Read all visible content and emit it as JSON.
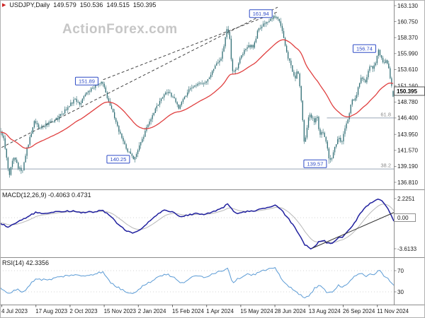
{
  "quote_bar": {
    "symbol": "USDJPY,Daily",
    "open": "149.579",
    "high": "150.536",
    "low": "149.515",
    "close": "150.395"
  },
  "watermark": "ActionForex.com",
  "panels": {
    "macd": {
      "label": "MACD(12,26,9) -0.4063 0.4731"
    },
    "rsi": {
      "label": "RSI(14) 42.3356"
    }
  },
  "colors": {
    "candle": "#2f6d74",
    "ma": "#e04040",
    "macd": "#1f1f9e",
    "macd_signal": "#b8b8b8",
    "macd_trendline": "#333333",
    "rsi": "#5b9bd5",
    "annotation": "#2e4bc6",
    "trendline": "#444444",
    "fib": "#9aa7b8",
    "fib_text": "#8a8a8a",
    "axis_text": "#1a1a1a",
    "separator": "#8c8c8c"
  },
  "x_axis": {
    "labels": [
      "4 Jul 2023",
      "17 Aug 2023",
      "2 Oct 2023",
      "15 Nov 2023",
      "2 Jan 2024",
      "15 Feb 2024",
      "1 Apr 2024",
      "15 May 2024",
      "28 Jun 2024",
      "13 Aug 2024",
      "26 Sep 2024",
      "11 Nov 2024"
    ]
  },
  "chart_data": [
    {
      "type": "candlestick",
      "name": "USDJPY Daily price",
      "y_axis_labels": [
        "163.130",
        "160.750",
        "158.370",
        "155.990",
        "153.610",
        "151.160",
        "148.780",
        "146.400",
        "143.950",
        "141.570",
        "139.190",
        "136.810"
      ],
      "current_price_label": "150.395",
      "ylim": [
        136.0,
        164.0
      ],
      "series_anchors": {
        "price": [
          [
            0.0,
            144.3
          ],
          [
            0.008,
            143.2
          ],
          [
            0.022,
            137.6
          ],
          [
            0.032,
            140.9
          ],
          [
            0.045,
            139.0
          ],
          [
            0.055,
            138.4
          ],
          [
            0.065,
            141.4
          ],
          [
            0.086,
            146.0
          ],
          [
            0.1,
            144.9
          ],
          [
            0.118,
            145.5
          ],
          [
            0.145,
            146.3
          ],
          [
            0.17,
            147.9
          ],
          [
            0.19,
            149.3
          ],
          [
            0.2,
            148.4
          ],
          [
            0.215,
            149.8
          ],
          [
            0.232,
            150.8
          ],
          [
            0.25,
            151.5
          ],
          [
            0.258,
            151.89
          ],
          [
            0.268,
            150.1
          ],
          [
            0.285,
            147.3
          ],
          [
            0.3,
            144.7
          ],
          [
            0.315,
            142.4
          ],
          [
            0.327,
            141.2
          ],
          [
            0.338,
            140.3
          ],
          [
            0.355,
            142.3
          ],
          [
            0.37,
            144.7
          ],
          [
            0.385,
            146.7
          ],
          [
            0.4,
            148.2
          ],
          [
            0.418,
            150.2
          ],
          [
            0.432,
            150.0
          ],
          [
            0.445,
            148.9
          ],
          [
            0.455,
            147.8
          ],
          [
            0.465,
            149.1
          ],
          [
            0.48,
            150.7
          ],
          [
            0.5,
            151.3
          ],
          [
            0.523,
            151.6
          ],
          [
            0.545,
            154.0
          ],
          [
            0.562,
            155.3
          ],
          [
            0.578,
            160.0
          ],
          [
            0.584,
            158.0
          ],
          [
            0.59,
            153.2
          ],
          [
            0.6,
            153.6
          ],
          [
            0.615,
            155.9
          ],
          [
            0.63,
            157.0
          ],
          [
            0.645,
            157.1
          ],
          [
            0.655,
            159.5
          ],
          [
            0.668,
            160.4
          ],
          [
            0.683,
            160.9
          ],
          [
            0.7,
            161.6
          ],
          [
            0.712,
            160.7
          ],
          [
            0.722,
            157.9
          ],
          [
            0.732,
            155.4
          ],
          [
            0.742,
            153.7
          ],
          [
            0.75,
            152.3
          ],
          [
            0.757,
            153.6
          ],
          [
            0.763,
            150.8
          ],
          [
            0.768,
            147.2
          ],
          [
            0.774,
            142.3
          ],
          [
            0.78,
            144.7
          ],
          [
            0.786,
            147.1
          ],
          [
            0.793,
            146.3
          ],
          [
            0.8,
            145.9
          ],
          [
            0.806,
            146.9
          ],
          [
            0.812,
            143.9
          ],
          [
            0.82,
            144.6
          ],
          [
            0.83,
            142.5
          ],
          [
            0.838,
            140.0
          ],
          [
            0.845,
            140.6
          ],
          [
            0.853,
            142.3
          ],
          [
            0.862,
            143.6
          ],
          [
            0.868,
            142.7
          ],
          [
            0.875,
            144.1
          ],
          [
            0.885,
            146.4
          ],
          [
            0.895,
            148.9
          ],
          [
            0.905,
            149.4
          ],
          [
            0.913,
            151.6
          ],
          [
            0.92,
            152.4
          ],
          [
            0.928,
            151.6
          ],
          [
            0.935,
            152.9
          ],
          [
            0.943,
            154.3
          ],
          [
            0.95,
            153.7
          ],
          [
            0.957,
            155.1
          ],
          [
            0.963,
            156.4
          ],
          [
            0.97,
            155.3
          ],
          [
            0.977,
            154.3
          ],
          [
            0.983,
            155.2
          ],
          [
            0.99,
            153.5
          ],
          [
            0.995,
            151.6
          ],
          [
            1.0,
            150.4
          ]
        ]
      },
      "overlays": {
        "moving_average": {
          "name": "MA",
          "color": "#e04040"
        },
        "trendlines": [
          {
            "points": [
              0.004,
              142.0,
              0.705,
              162.9
            ],
            "style": "dashed"
          },
          {
            "points": [
              0.262,
              152.1,
              0.705,
              162.2
            ],
            "style": "dashed"
          }
        ],
        "fib_levels": [
          {
            "label": "61.8",
            "value": 146.4,
            "from": 0.83,
            "to": 1.0
          },
          {
            "label": "38.2",
            "value": 138.8,
            "from": 0.0,
            "to": 1.0
          }
        ],
        "annotations": [
          {
            "label": "161.94",
            "t": 0.7,
            "value": 161.94,
            "side": "high"
          },
          {
            "label": "156.74",
            "t": 0.963,
            "value": 156.74,
            "side": "high"
          },
          {
            "label": "151.89",
            "t": 0.258,
            "value": 151.89,
            "side": "high"
          },
          {
            "label": "140.25",
            "t": 0.338,
            "value": 140.25,
            "side": "low"
          },
          {
            "label": "139.57",
            "t": 0.838,
            "value": 139.57,
            "side": "low"
          }
        ]
      }
    },
    {
      "type": "line",
      "name": "MACD(12,26,9)",
      "values_label": "-0.4063 0.4731",
      "y_axis_labels": [
        "2.2251",
        "0.00",
        "-3.6133"
      ],
      "boxed_axis_label": "0.00",
      "anchors": [
        [
          0.0,
          -0.6
        ],
        [
          0.02,
          -1.1
        ],
        [
          0.05,
          -0.4
        ],
        [
          0.09,
          0.6
        ],
        [
          0.12,
          0.5
        ],
        [
          0.15,
          0.7
        ],
        [
          0.18,
          0.8
        ],
        [
          0.21,
          0.6
        ],
        [
          0.24,
          0.7
        ],
        [
          0.26,
          0.85
        ],
        [
          0.28,
          0.2
        ],
        [
          0.3,
          -0.8
        ],
        [
          0.32,
          -1.5
        ],
        [
          0.34,
          -1.8
        ],
        [
          0.36,
          -1.2
        ],
        [
          0.38,
          -0.4
        ],
        [
          0.4,
          0.4
        ],
        [
          0.42,
          0.9
        ],
        [
          0.44,
          0.6
        ],
        [
          0.46,
          0.1
        ],
        [
          0.48,
          0.3
        ],
        [
          0.5,
          0.5
        ],
        [
          0.52,
          0.4
        ],
        [
          0.545,
          0.8
        ],
        [
          0.565,
          1.1
        ],
        [
          0.578,
          1.6
        ],
        [
          0.59,
          0.9
        ],
        [
          0.6,
          0.4
        ],
        [
          0.615,
          0.6
        ],
        [
          0.63,
          0.8
        ],
        [
          0.645,
          0.7
        ],
        [
          0.66,
          1.0
        ],
        [
          0.68,
          1.2
        ],
        [
          0.7,
          1.45
        ],
        [
          0.715,
          0.9
        ],
        [
          0.73,
          0.0
        ],
        [
          0.745,
          -0.9
        ],
        [
          0.76,
          -2.0
        ],
        [
          0.775,
          -3.2
        ],
        [
          0.79,
          -3.61
        ],
        [
          0.8,
          -3.3
        ],
        [
          0.81,
          -2.8
        ],
        [
          0.82,
          -2.6
        ],
        [
          0.83,
          -2.9
        ],
        [
          0.84,
          -3.0
        ],
        [
          0.85,
          -2.7
        ],
        [
          0.86,
          -2.3
        ],
        [
          0.87,
          -2.2
        ],
        [
          0.88,
          -1.8
        ],
        [
          0.89,
          -1.2
        ],
        [
          0.9,
          -0.6
        ],
        [
          0.91,
          0.1
        ],
        [
          0.92,
          0.8
        ],
        [
          0.93,
          1.3
        ],
        [
          0.94,
          1.7
        ],
        [
          0.95,
          2.0
        ],
        [
          0.958,
          2.22
        ],
        [
          0.965,
          2.1
        ],
        [
          0.975,
          1.7
        ],
        [
          0.985,
          1.1
        ],
        [
          0.993,
          0.3
        ],
        [
          1.0,
          -0.41
        ]
      ],
      "trendline": {
        "points": [
          0.793,
          -3.55,
          1.0,
          0.6
        ],
        "style": "solid"
      }
    },
    {
      "type": "line",
      "name": "RSI(14)",
      "value": 42.3356,
      "y_axis_labels": [
        "70",
        "30"
      ],
      "levels": [
        70,
        30
      ],
      "anchors": [
        [
          0.0,
          38
        ],
        [
          0.02,
          26
        ],
        [
          0.04,
          35
        ],
        [
          0.06,
          30
        ],
        [
          0.09,
          55
        ],
        [
          0.12,
          52
        ],
        [
          0.15,
          58
        ],
        [
          0.18,
          62
        ],
        [
          0.21,
          60
        ],
        [
          0.24,
          64
        ],
        [
          0.26,
          68
        ],
        [
          0.28,
          48
        ],
        [
          0.3,
          38
        ],
        [
          0.32,
          30
        ],
        [
          0.34,
          28
        ],
        [
          0.36,
          40
        ],
        [
          0.38,
          48
        ],
        [
          0.4,
          58
        ],
        [
          0.42,
          64
        ],
        [
          0.44,
          58
        ],
        [
          0.46,
          45
        ],
        [
          0.48,
          55
        ],
        [
          0.5,
          60
        ],
        [
          0.52,
          58
        ],
        [
          0.545,
          66
        ],
        [
          0.565,
          70
        ],
        [
          0.578,
          76
        ],
        [
          0.59,
          48
        ],
        [
          0.6,
          52
        ],
        [
          0.615,
          60
        ],
        [
          0.63,
          64
        ],
        [
          0.645,
          62
        ],
        [
          0.66,
          68
        ],
        [
          0.68,
          72
        ],
        [
          0.7,
          74
        ],
        [
          0.715,
          55
        ],
        [
          0.73,
          42
        ],
        [
          0.745,
          33
        ],
        [
          0.76,
          25
        ],
        [
          0.775,
          20
        ],
        [
          0.79,
          26
        ],
        [
          0.8,
          38
        ],
        [
          0.81,
          42
        ],
        [
          0.82,
          36
        ],
        [
          0.83,
          30
        ],
        [
          0.84,
          28
        ],
        [
          0.85,
          36
        ],
        [
          0.86,
          42
        ],
        [
          0.87,
          38
        ],
        [
          0.88,
          44
        ],
        [
          0.89,
          52
        ],
        [
          0.9,
          58
        ],
        [
          0.91,
          62
        ],
        [
          0.92,
          64
        ],
        [
          0.93,
          60
        ],
        [
          0.94,
          66
        ],
        [
          0.95,
          62
        ],
        [
          0.958,
          70
        ],
        [
          0.965,
          72
        ],
        [
          0.975,
          58
        ],
        [
          0.985,
          54
        ],
        [
          0.993,
          46
        ],
        [
          1.0,
          42.34
        ]
      ]
    }
  ]
}
